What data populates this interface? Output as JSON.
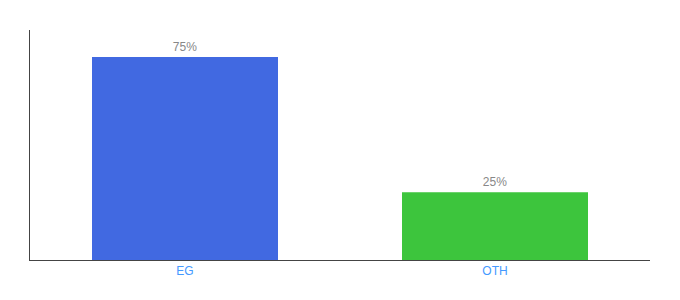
{
  "chart_data": {
    "type": "bar",
    "categories": [
      "EG",
      "OTH"
    ],
    "values": [
      75,
      25
    ],
    "value_labels": [
      "75%",
      "25%"
    ],
    "colors": [
      "#4169e1",
      "#3dc53d"
    ],
    "ylim": [
      0,
      85
    ],
    "data_labels": true,
    "tick_labels": "x",
    "grid": false
  }
}
